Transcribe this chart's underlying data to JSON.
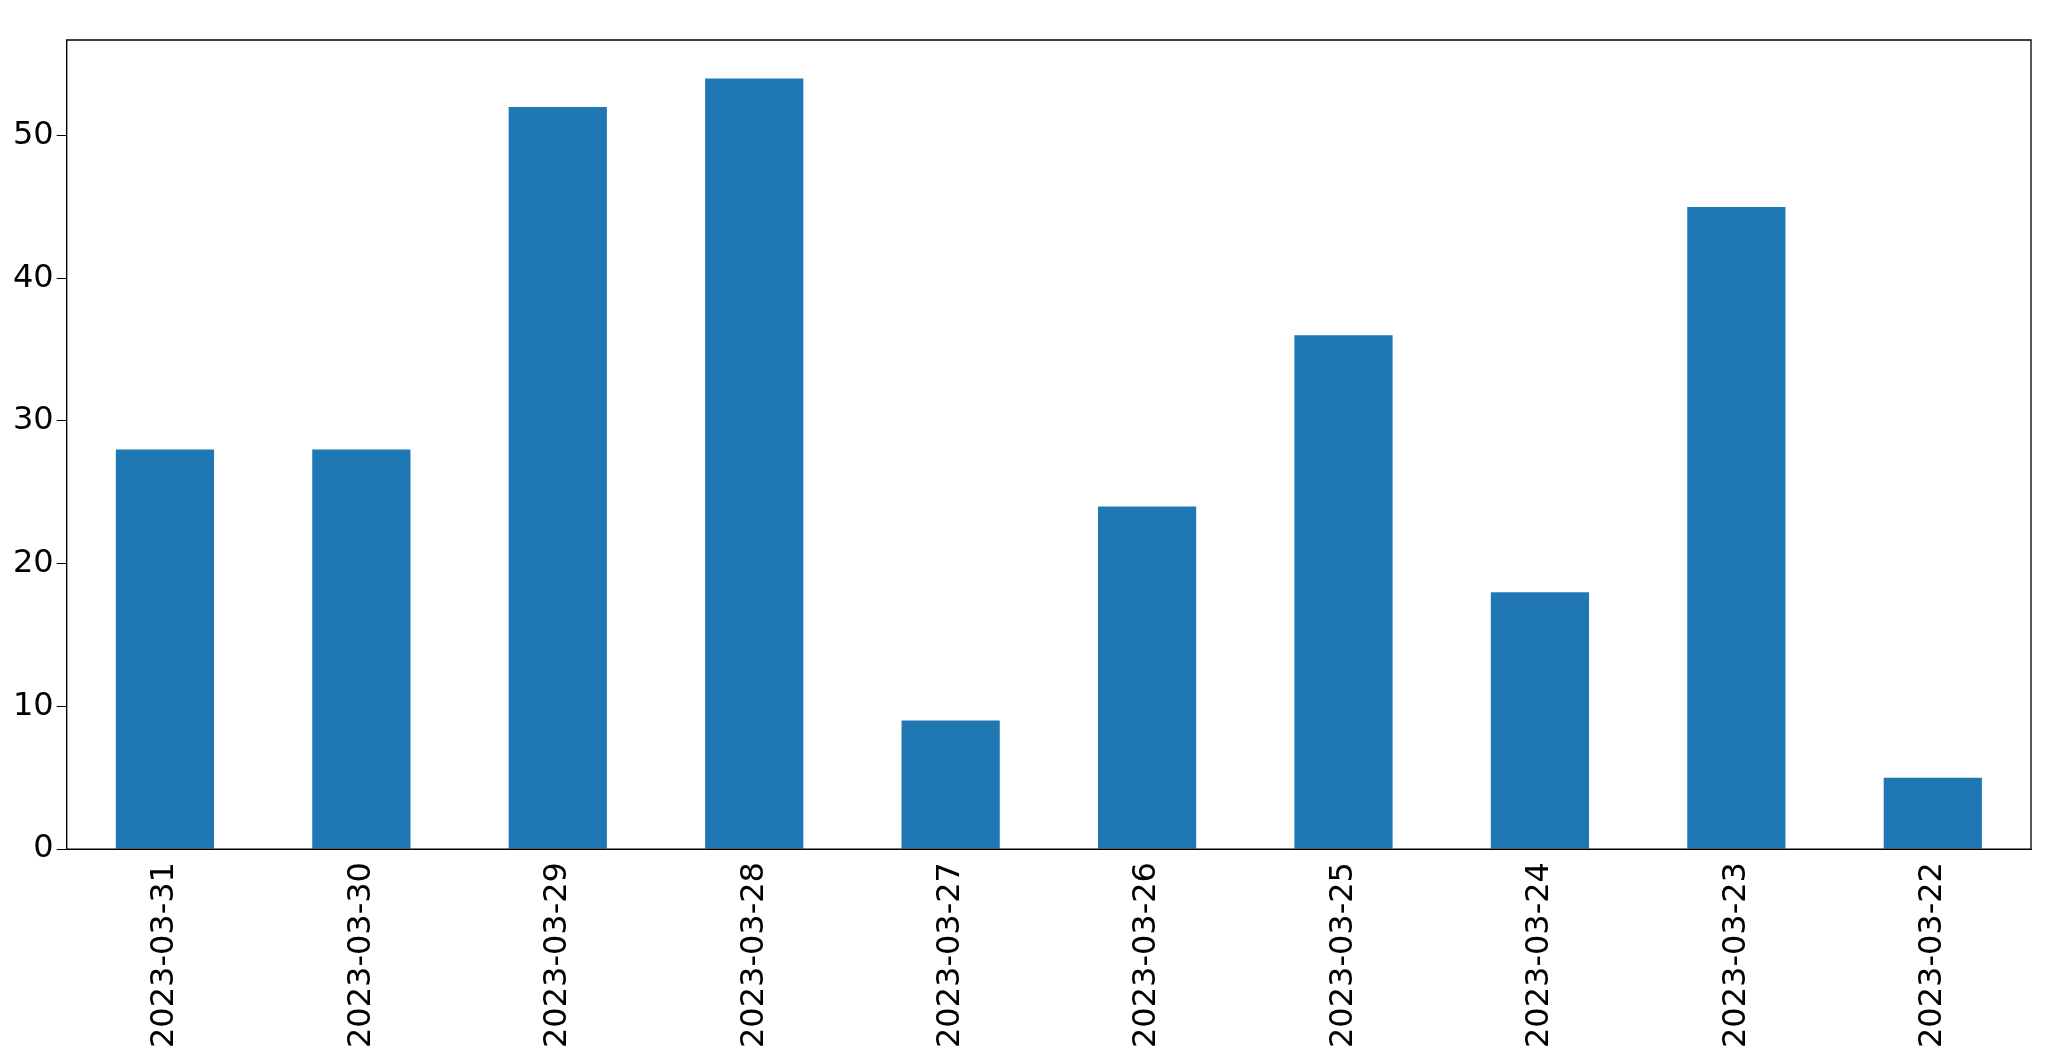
{
  "chart_data": {
    "type": "bar",
    "categories": [
      "2023-03-31",
      "2023-03-30",
      "2023-03-29",
      "2023-03-28",
      "2023-03-27",
      "2023-03-26",
      "2023-03-25",
      "2023-03-24",
      "2023-03-23",
      "2023-03-22"
    ],
    "values": [
      28,
      28,
      52,
      54,
      9,
      24,
      36,
      18,
      45,
      5
    ],
    "color": "#1f77b4",
    "ylim": [
      0,
      56.7
    ],
    "yticks": [
      0,
      10,
      20,
      30,
      40,
      50
    ],
    "grid": false,
    "legend": false
  }
}
